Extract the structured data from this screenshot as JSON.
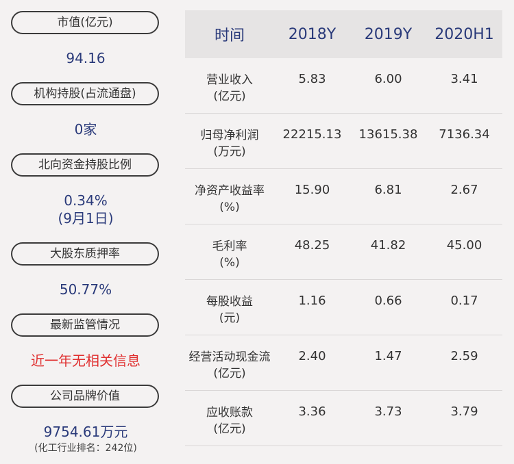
{
  "left_metrics": [
    {
      "label": "市值(亿元)",
      "value": "94.16"
    },
    {
      "label": "机构持股(占流通盘)",
      "value": "0家"
    },
    {
      "label": "北向资金持股比例",
      "value": "0.34%",
      "value2": "(9月1日)"
    },
    {
      "label": "大股东质押率",
      "value": "50.77%"
    },
    {
      "label": "最新监管情况",
      "value": "近一年无相关信息"
    },
    {
      "label": "公司品牌价值",
      "value": "9754.61万元",
      "note": "(化工行业排名：242位)"
    }
  ],
  "table": {
    "headers": [
      "时间",
      "2018Y",
      "2019Y",
      "2020H1"
    ],
    "rows": [
      {
        "label1": "营业收入",
        "label2": "(亿元)",
        "values": [
          "5.83",
          "6.00",
          "3.41"
        ]
      },
      {
        "label1": "归母净利润",
        "label2": "(万元)",
        "values": [
          "22215.13",
          "13615.38",
          "7136.34"
        ]
      },
      {
        "label1": "净资产收益率",
        "label2": "(%)",
        "values": [
          "15.90",
          "6.81",
          "2.67"
        ]
      },
      {
        "label1": "毛利率",
        "label2": "(%)",
        "values": [
          "48.25",
          "41.82",
          "45.00"
        ]
      },
      {
        "label1": "每股收益",
        "label2": "(元)",
        "values": [
          "1.16",
          "0.66",
          "0.17"
        ]
      },
      {
        "label1": "经营活动现金流",
        "label2": "(亿元)",
        "values": [
          "2.40",
          "1.47",
          "2.59"
        ]
      },
      {
        "label1": "应收账款",
        "label2": "(亿元)",
        "values": [
          "3.36",
          "3.73",
          "3.79"
        ]
      }
    ]
  },
  "colors": {
    "background": "#f4f2f2",
    "header_bg": "#e6e4e4",
    "value_blue": "#2a3a7a",
    "alert_red": "#e03030"
  }
}
